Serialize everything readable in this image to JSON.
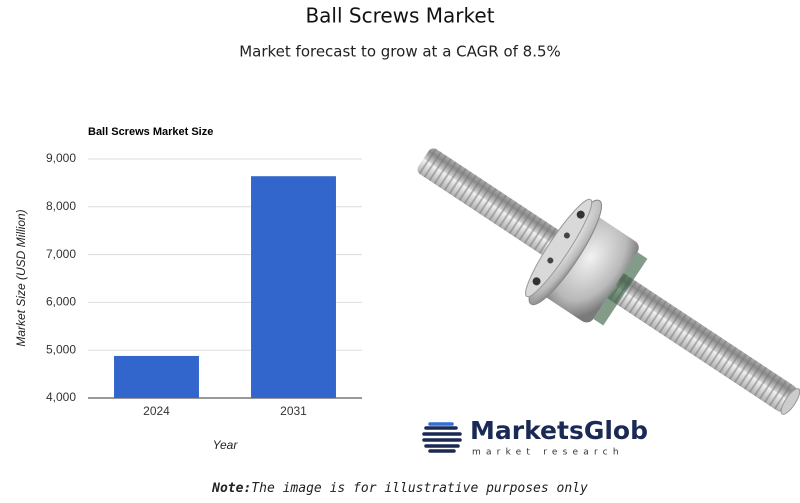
{
  "header": {
    "title": "Ball Screws Market",
    "subtitle": "Market forecast to grow at a CAGR of 8.5%"
  },
  "chart_data": {
    "type": "bar",
    "title": "Ball Screws Market Size",
    "x_label": "Year",
    "y_label": "Market Size (USD Million)",
    "categories": [
      "2024",
      "2031"
    ],
    "values": [
      4880,
      8640
    ],
    "color": "#3366cc",
    "ylim": [
      4000,
      9000
    ],
    "yticks": [
      {
        "value": 4000,
        "label": "4,000"
      },
      {
        "value": 5000,
        "label": "5,000"
      },
      {
        "value": 6000,
        "label": "6,000"
      },
      {
        "value": 7000,
        "label": "7,000"
      },
      {
        "value": 8000,
        "label": "8,000"
      },
      {
        "value": 9000,
        "label": "9,000"
      }
    ],
    "grid": true
  },
  "logo": {
    "name": "MarketsGlob",
    "tagline": "market research"
  },
  "note": {
    "label": "Note:",
    "text": "The image is for illustrative purposes only"
  }
}
